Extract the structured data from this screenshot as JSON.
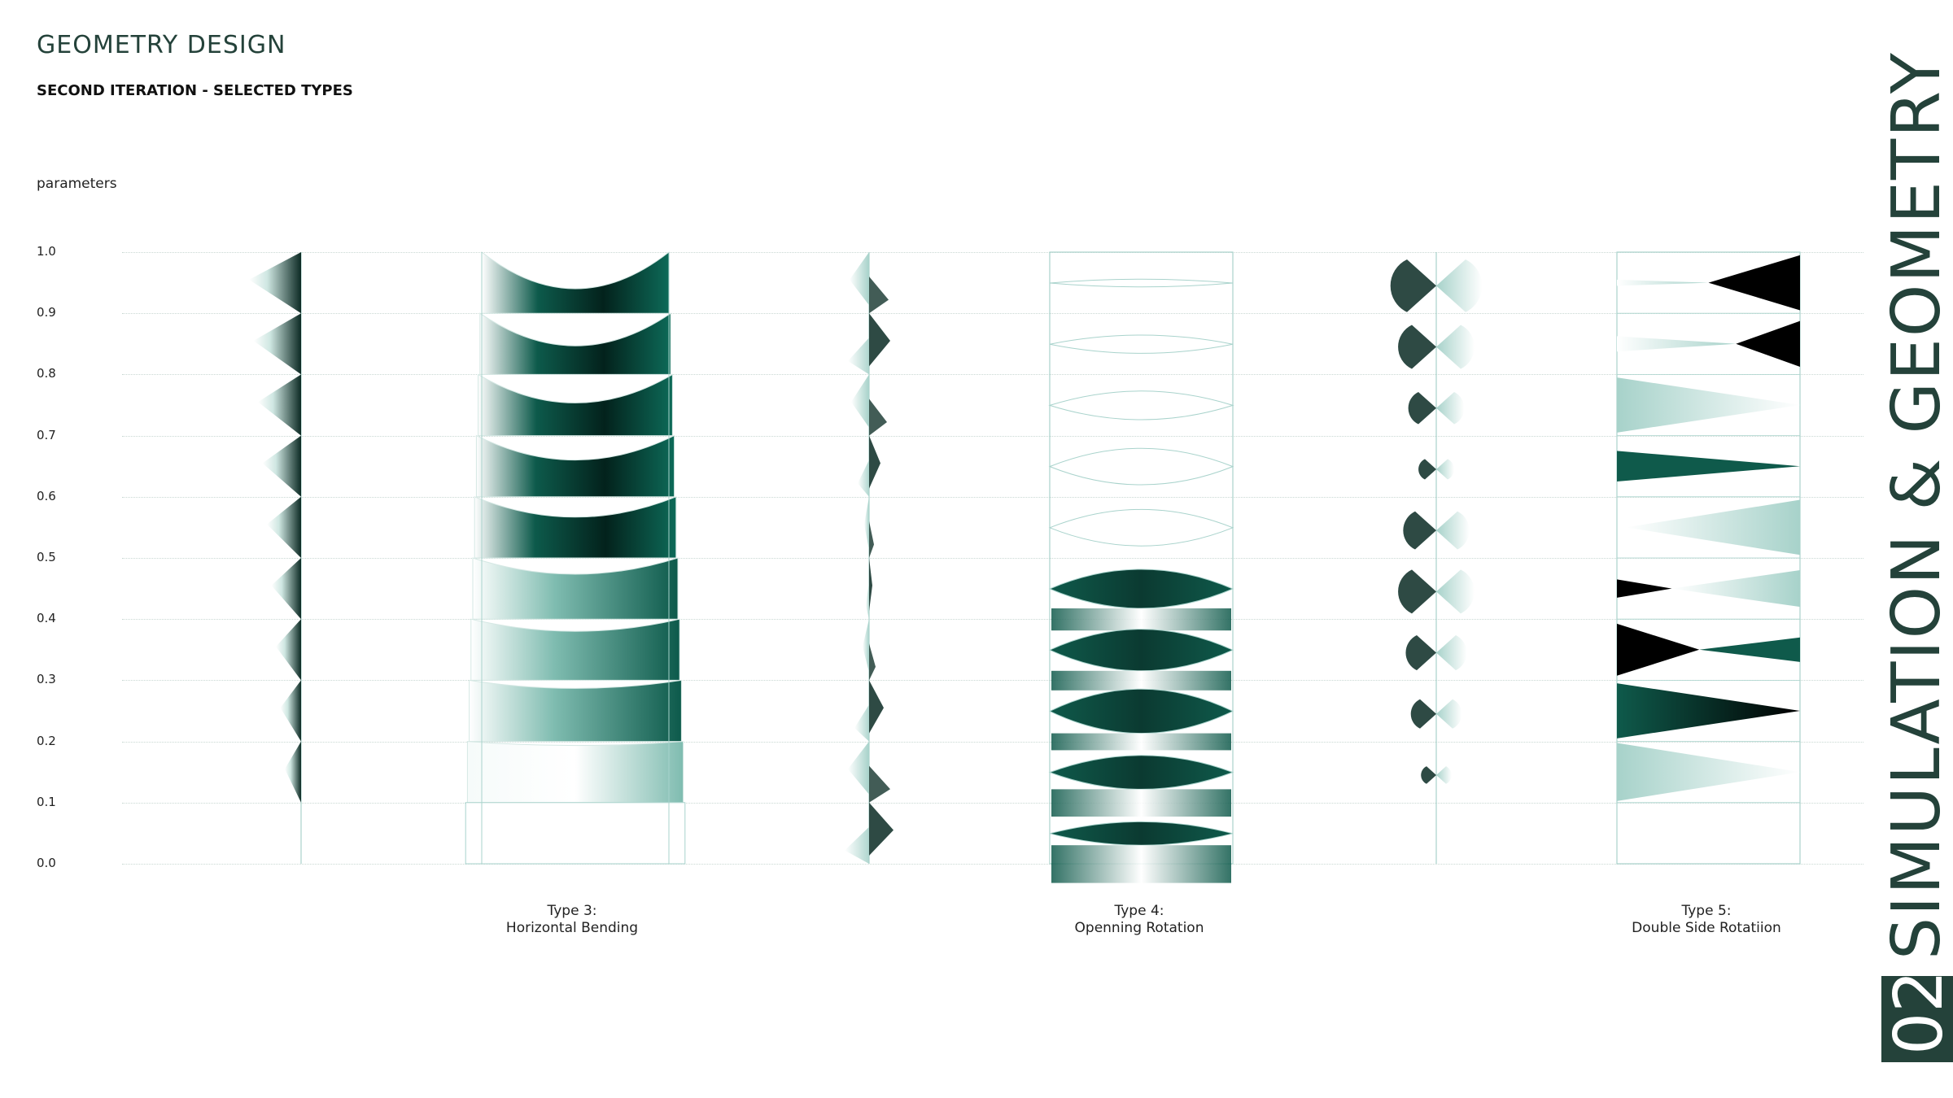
{
  "header": {
    "title": "GEOMETRY DESIGN",
    "subtitle": "SECOND ITERATION - SELECTED TYPES"
  },
  "axis": {
    "label": "parameters",
    "ticks": [
      "1.0",
      "0.9",
      "0.8",
      "0.7",
      "0.6",
      "0.5",
      "0.4",
      "0.3",
      "0.2",
      "0.1",
      "0.0"
    ]
  },
  "types": [
    {
      "caption_line1": "Type 3:",
      "caption_line2": "Horizontal Bending"
    },
    {
      "caption_line1": "Type 4:",
      "caption_line2": "Openning Rotation"
    },
    {
      "caption_line1": "Type 5:",
      "caption_line2": "Double Side Rotatiion"
    }
  ],
  "sidebar": {
    "number": "02",
    "title": "SIMULATION & GEOMETRY"
  },
  "colors": {
    "dark": "#0c1a16",
    "green": "#0f5a4b",
    "accent": "#24423a",
    "frame": "#a9d3cc"
  }
}
